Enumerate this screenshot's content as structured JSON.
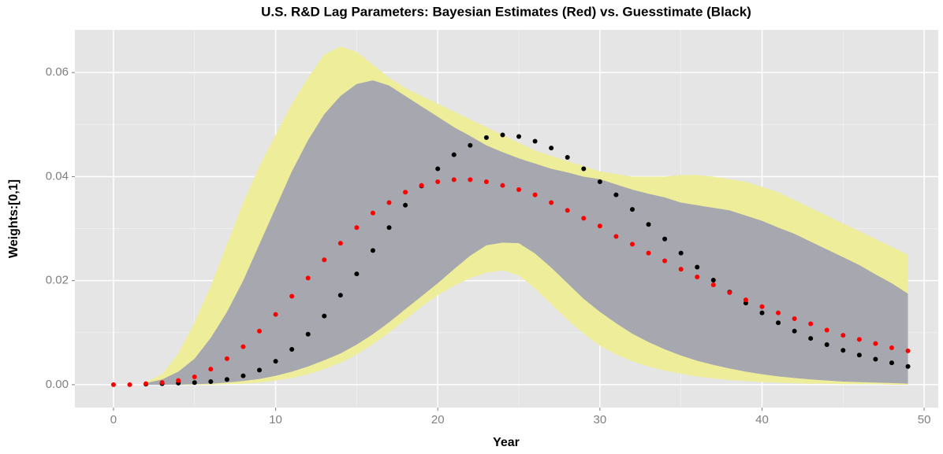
{
  "chart_data": {
    "type": "scatter",
    "title": "U.S. R&D Lag Parameters: Bayesian Estimates (Red) vs. Guesstimate (Black)",
    "x_label": "Year",
    "y_label": "Weights:[0,1]",
    "x": [
      0,
      1,
      2,
      3,
      4,
      5,
      6,
      7,
      8,
      9,
      10,
      11,
      12,
      13,
      14,
      15,
      16,
      17,
      18,
      19,
      20,
      21,
      22,
      23,
      24,
      25,
      26,
      27,
      28,
      29,
      30,
      31,
      32,
      33,
      34,
      35,
      36,
      37,
      38,
      39,
      40,
      41,
      42,
      43,
      44,
      45,
      46,
      47,
      48,
      49
    ],
    "xlim": [
      -2.38,
      50.87
    ],
    "ylim": [
      -0.0044,
      0.0682
    ],
    "xticks": [
      0,
      10,
      20,
      30,
      40,
      50
    ],
    "yticks": [
      {
        "value": 0,
        "label": "0.00"
      },
      0.02,
      0.04,
      0.06
    ],
    "xminor": [
      5,
      15,
      25,
      35,
      45
    ],
    "yminor": [
      0.01,
      0.03,
      0.05
    ],
    "grid": true,
    "series": [
      {
        "kind": "ribbon",
        "color": "#eeee9a",
        "upper": [
          null,
          null,
          0.0005,
          0.002,
          0.006,
          0.012,
          0.019,
          0.027,
          0.035,
          0.042,
          0.048,
          0.054,
          0.059,
          0.0635,
          0.065,
          0.064,
          0.0615,
          0.059,
          0.057,
          0.0555,
          0.054,
          0.0525,
          0.051,
          0.0495,
          0.048,
          0.0465,
          0.045,
          0.044,
          0.043,
          0.042,
          0.041,
          0.0405,
          0.04,
          0.04,
          0.04,
          0.0403,
          0.0403,
          0.04,
          0.0395,
          0.039,
          0.038,
          0.037,
          0.0355,
          0.034,
          0.0325,
          0.031,
          0.0295,
          0.028,
          0.0265,
          0.025
        ],
        "lower": [
          null,
          null,
          0,
          0,
          0,
          0,
          0,
          0.0001,
          0.0002,
          0.0004,
          0.0008,
          0.0013,
          0.002,
          0.003,
          0.0042,
          0.0058,
          0.0078,
          0.01,
          0.0125,
          0.015,
          0.0172,
          0.019,
          0.0205,
          0.0215,
          0.022,
          0.021,
          0.0185,
          0.0155,
          0.0125,
          0.0098,
          0.0075,
          0.0058,
          0.0045,
          0.0035,
          0.0027,
          0.0021,
          0.0016,
          0.0012,
          0.0009,
          0.0007,
          0.0005,
          0.0004,
          0.0003,
          0.0002,
          0.0002,
          0.0001,
          0.0001,
          0.0001,
          0,
          0
        ]
      },
      {
        "kind": "ribbon",
        "color": "#a7a7b0",
        "upper": [
          null,
          null,
          0.0003,
          0.001,
          0.0025,
          0.005,
          0.009,
          0.014,
          0.02,
          0.027,
          0.034,
          0.041,
          0.047,
          0.052,
          0.0555,
          0.0578,
          0.0585,
          0.0575,
          0.0555,
          0.0535,
          0.0515,
          0.0495,
          0.0478,
          0.046,
          0.0447,
          0.0435,
          0.0425,
          0.0415,
          0.0408,
          0.04,
          0.0395,
          0.0385,
          0.0375,
          0.0367,
          0.036,
          0.035,
          0.0345,
          0.034,
          0.0335,
          0.0325,
          0.0315,
          0.0302,
          0.029,
          0.0275,
          0.026,
          0.0245,
          0.023,
          0.0212,
          0.0195,
          0.0175
        ],
        "lower": [
          null,
          null,
          0,
          0,
          0,
          0.0001,
          0.0002,
          0.0004,
          0.0007,
          0.0011,
          0.0017,
          0.0025,
          0.0035,
          0.0047,
          0.006,
          0.0077,
          0.0097,
          0.012,
          0.0145,
          0.017,
          0.0195,
          0.0222,
          0.0248,
          0.0268,
          0.0273,
          0.0272,
          0.0252,
          0.0225,
          0.0195,
          0.0165,
          0.014,
          0.0118,
          0.0098,
          0.0082,
          0.0068,
          0.0056,
          0.0046,
          0.0038,
          0.0031,
          0.0025,
          0.002,
          0.0016,
          0.0013,
          0.001,
          0.0008,
          0.0006,
          0.0005,
          0.0004,
          0.0003,
          0.0002
        ]
      },
      {
        "kind": "points",
        "color": "#000000",
        "values": [
          null,
          null,
          0.0001,
          0.0002,
          0.0003,
          0.0004,
          0.0006,
          0.001,
          0.0017,
          0.0028,
          0.0045,
          0.0068,
          0.0097,
          0.0132,
          0.0172,
          0.0213,
          0.0258,
          0.0302,
          0.0345,
          0.0382,
          0.0415,
          0.0442,
          0.046,
          0.0475,
          0.048,
          0.0477,
          0.0468,
          0.0455,
          0.0437,
          0.0415,
          0.039,
          0.0365,
          0.0337,
          0.0308,
          0.028,
          0.0253,
          0.0226,
          0.0201,
          0.0178,
          0.0157,
          0.0138,
          0.0119,
          0.0103,
          0.0089,
          0.0077,
          0.0066,
          0.0057,
          0.0049,
          0.0042,
          0.0035
        ]
      },
      {
        "kind": "points",
        "color": "#ff0000",
        "values": [
          0,
          0,
          0.0002,
          0.0004,
          0.0008,
          0.0015,
          0.003,
          0.005,
          0.0073,
          0.0103,
          0.0135,
          0.017,
          0.0205,
          0.024,
          0.0272,
          0.0302,
          0.033,
          0.035,
          0.037,
          0.0383,
          0.039,
          0.0394,
          0.0394,
          0.039,
          0.0383,
          0.0375,
          0.0365,
          0.035,
          0.0335,
          0.032,
          0.0305,
          0.0285,
          0.027,
          0.0253,
          0.0238,
          0.0222,
          0.0207,
          0.0192,
          0.0177,
          0.0163,
          0.015,
          0.0138,
          0.0127,
          0.0117,
          0.0105,
          0.0095,
          0.0087,
          0.0079,
          0.0071,
          0.0065
        ]
      }
    ]
  }
}
